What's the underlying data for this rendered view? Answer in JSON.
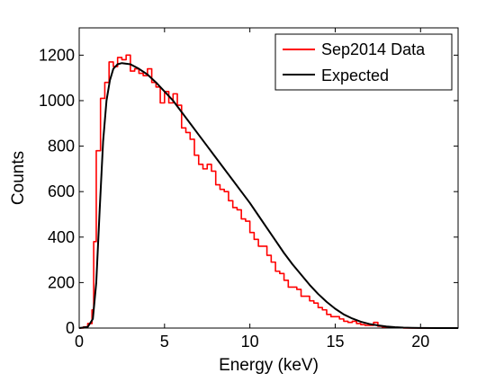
{
  "chart_data": {
    "type": "line",
    "xlabel": "Energy (keV)",
    "ylabel": "Counts",
    "xlim": [
      0,
      22.2
    ],
    "ylim": [
      0,
      1320
    ],
    "xticks": [
      0,
      5,
      10,
      15,
      20
    ],
    "yticks": [
      0,
      200,
      400,
      600,
      800,
      1000,
      1200
    ],
    "grid": false,
    "legend_position": "top-right",
    "series": [
      {
        "name": "Sep2014 Data",
        "color": "#ff0000",
        "style": "step",
        "x": [
          0.0,
          0.25,
          0.5,
          0.75,
          0.85,
          1.0,
          1.25,
          1.5,
          1.75,
          2.0,
          2.25,
          2.5,
          2.75,
          3.0,
          3.25,
          3.5,
          3.75,
          4.0,
          4.25,
          4.5,
          4.75,
          5.0,
          5.25,
          5.5,
          5.75,
          6.0,
          6.25,
          6.5,
          6.75,
          7.0,
          7.25,
          7.5,
          7.75,
          8.0,
          8.25,
          8.5,
          8.75,
          9.0,
          9.25,
          9.5,
          9.75,
          10.0,
          10.25,
          10.5,
          10.75,
          11.0,
          11.25,
          11.5,
          11.75,
          12.0,
          12.25,
          12.5,
          12.75,
          13.0,
          13.25,
          13.5,
          13.75,
          14.0,
          14.25,
          14.5,
          14.75,
          15.0,
          15.25,
          15.5,
          15.75,
          16.0,
          16.25,
          16.5,
          16.75,
          17.0,
          17.25,
          17.5,
          17.75,
          18.0,
          18.25,
          18.5,
          18.75,
          19.0,
          19.25,
          19.5,
          19.75,
          20.0,
          20.5,
          21.0,
          21.5
        ],
        "values": [
          0,
          5,
          20,
          80,
          380,
          780,
          1010,
          1080,
          1170,
          1150,
          1190,
          1180,
          1200,
          1130,
          1140,
          1120,
          1110,
          1140,
          1080,
          1060,
          990,
          1040,
          990,
          1030,
          980,
          880,
          860,
          830,
          760,
          720,
          700,
          720,
          690,
          630,
          610,
          600,
          560,
          530,
          520,
          480,
          470,
          420,
          390,
          360,
          360,
          320,
          290,
          250,
          240,
          210,
          180,
          180,
          170,
          140,
          140,
          120,
          110,
          90,
          80,
          60,
          50,
          50,
          40,
          30,
          25,
          30,
          20,
          15,
          12,
          12,
          25,
          8,
          5,
          3,
          2,
          1,
          1,
          0,
          0,
          0,
          0,
          0,
          0,
          0,
          0
        ]
      },
      {
        "name": "Expected",
        "color": "#000000",
        "style": "line",
        "x": [
          0,
          0.5,
          0.8,
          1.0,
          1.2,
          1.4,
          1.6,
          1.8,
          2.0,
          2.25,
          2.5,
          3.0,
          3.5,
          4.0,
          4.5,
          5.0,
          5.5,
          6.0,
          6.5,
          7.0,
          7.5,
          8.0,
          8.5,
          9.0,
          9.5,
          10.0,
          10.5,
          11.0,
          11.5,
          12.0,
          12.5,
          13.0,
          13.5,
          14.0,
          14.5,
          15.0,
          15.5,
          16.0,
          16.5,
          17.0,
          17.5,
          18.0,
          18.5,
          19.0,
          19.5,
          20.0,
          21.0,
          22.2
        ],
        "values": [
          0,
          5,
          40,
          200,
          520,
          820,
          1000,
          1090,
          1140,
          1160,
          1165,
          1160,
          1140,
          1115,
          1080,
          1040,
          1000,
          950,
          900,
          850,
          800,
          750,
          700,
          650,
          600,
          550,
          495,
          440,
          385,
          330,
          280,
          235,
          190,
          150,
          115,
          85,
          60,
          42,
          28,
          18,
          12,
          7,
          4,
          2,
          1,
          0.5,
          0,
          0
        ]
      }
    ]
  }
}
